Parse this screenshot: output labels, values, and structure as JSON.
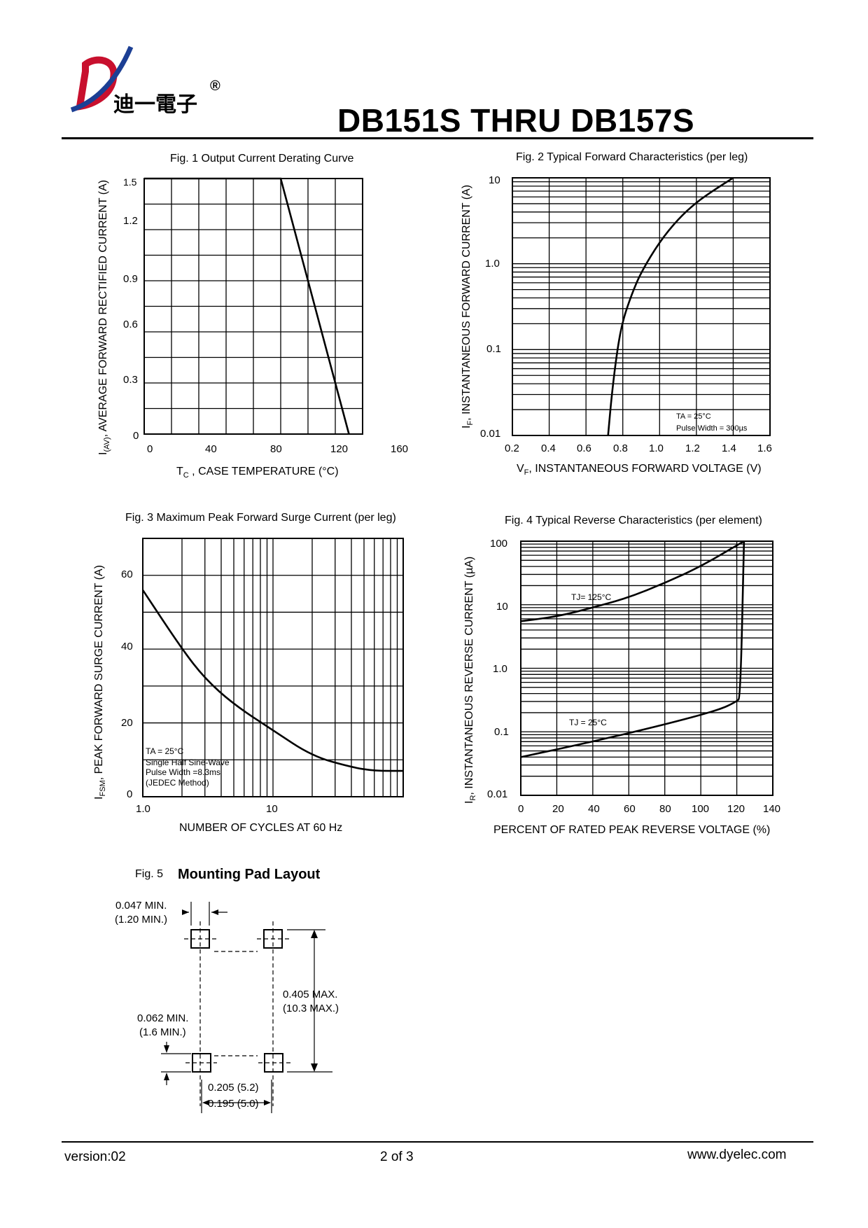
{
  "header": {
    "company_cn": "迪一電子",
    "registered": "®",
    "title": "DB151S THRU DB157S"
  },
  "fig1": {
    "title": "Fig. 1  Output Current Derating Curve",
    "ylabel_main": "I",
    "ylabel_sub": "(AV)",
    "ylabel_rest": ", AVERAGE FORWARD RECTIFIED CURRENT (A)",
    "xlabel_main": "T",
    "xlabel_sub": "C",
    "xlabel_rest": " , CASE TEMPERATURE (°C)",
    "yticks": [
      "1.5",
      "1.2",
      "0.9",
      "0.6",
      "0.3",
      "0"
    ],
    "xticks": [
      "0",
      "40",
      "80",
      "120",
      "160"
    ]
  },
  "fig2": {
    "title": "Fig. 2 Typical Forward Characteristics (per leg)",
    "ylabel_main": "I",
    "ylabel_sub": "F",
    "ylabel_rest": ", INSTANTANEOUS FORWARD CURRENT (A)",
    "xlabel_main": "V",
    "xlabel_sub": "F",
    "xlabel_rest": ", INSTANTANEOUS FORWARD VOLTAGE (V)",
    "yticks": [
      "10",
      "1.0",
      "0.1",
      "0.01"
    ],
    "xticks": [
      "0.2",
      "0.4",
      "0.6",
      "0.8",
      "1.0",
      "1.2",
      "1.4",
      "1.6"
    ],
    "note1": "TA = 25°C",
    "note2": "Pulse Width = 300µs"
  },
  "fig3": {
    "title": "Fig. 3  Maximum Peak Forward Surge Current (per leg)",
    "ylabel_main": "I",
    "ylabel_sub": "FSM",
    "ylabel_rest": ", PEAK FORWARD SURGE CURRENT (A)",
    "xlabel": "NUMBER OF CYCLES AT 60 Hz",
    "yticks": [
      "60",
      "40",
      "20",
      "0"
    ],
    "xticks": [
      "1.0",
      "10"
    ],
    "note1": "TA = 25°C",
    "note2": "Single Half Sine-Wave",
    "note3": "Pulse Width =8.3ms",
    "note4": "(JEDEC Method)"
  },
  "fig4": {
    "title": "Fig. 4  Typical Reverse Characteristics (per element)",
    "ylabel_main": "I",
    "ylabel_sub": "R",
    "ylabel_rest": ", INSTANTANEOUS REVERSE CURRENT (µA)",
    "xlabel": "PERCENT OF RATED PEAK REVERSE VOLTAGE (%)",
    "yticks": [
      "100",
      "10",
      "1.0",
      "0.1",
      "0.01"
    ],
    "xticks": [
      "0",
      "20",
      "40",
      "60",
      "80",
      "100",
      "120",
      "140"
    ],
    "label_hot": "TJ= 125°C",
    "label_cold": "TJ = 25°C"
  },
  "fig5": {
    "fig_no": "Fig. 5",
    "title": "Mounting Pad Layout",
    "dim1_a": "0.047 MIN.",
    "dim1_b": "(1.20 MIN.)",
    "dim2_a": "0.405 MAX.",
    "dim2_b": "(10.3 MAX.)",
    "dim3_a": "0.062 MIN.",
    "dim3_b": "(1.6 MIN.)",
    "dim4_a": "0.205 (5.2)",
    "dim4_b": "0.195 (5.0)"
  },
  "footer": {
    "version": "version:02",
    "page": "2 of 3",
    "website": "www.dyelec.com"
  },
  "chart_data": [
    {
      "type": "line",
      "title": "Fig. 1  Output Current Derating Curve",
      "xlabel": "TC , CASE TEMPERATURE (°C)",
      "ylabel": "I(AV), AVERAGE FORWARD RECTIFIED CURRENT (A)",
      "xlim": [
        0,
        160
      ],
      "ylim": [
        0,
        1.5
      ],
      "x": [
        0,
        100,
        150
      ],
      "y": [
        1.5,
        1.5,
        0
      ],
      "grid": true
    },
    {
      "type": "line",
      "title": "Fig. 2 Typical Forward Characteristics (per leg)",
      "xlabel": "VF, INSTANTANEOUS FORWARD VOLTAGE (V)",
      "ylabel": "IF, INSTANTANEOUS FORWARD CURRENT (A)",
      "xlim": [
        0.2,
        1.6
      ],
      "ylim": [
        0.01,
        10
      ],
      "yscale": "log",
      "x": [
        0.72,
        0.74,
        0.77,
        0.8,
        0.85,
        0.9,
        1.0,
        1.1,
        1.2,
        1.3,
        1.4
      ],
      "y": [
        0.01,
        0.03,
        0.1,
        0.22,
        0.45,
        0.8,
        1.8,
        3.3,
        5.2,
        7.3,
        10
      ],
      "grid": true
    },
    {
      "type": "line",
      "title": "Fig. 3  Maximum Peak Forward Surge Current (per leg)",
      "xlabel": "NUMBER OF CYCLES AT 60 Hz",
      "ylabel": "IFSM, PEAK FORWARD SURGE CURRENT (A)",
      "xlim": [
        1,
        100
      ],
      "ylim": [
        0,
        70
      ],
      "xscale": "log",
      "x": [
        1,
        2,
        3,
        5,
        10,
        20,
        40,
        60,
        100
      ],
      "y": [
        56,
        40,
        32,
        25,
        18,
        11,
        8,
        7,
        7
      ],
      "grid": true
    },
    {
      "type": "line",
      "title": "Fig. 4  Typical Reverse Characteristics (per element)",
      "xlabel": "PERCENT OF RATED PEAK REVERSE VOLTAGE (%)",
      "ylabel": "IR, INSTANTANEOUS REVERSE CURRENT (µA)",
      "xlim": [
        0,
        140
      ],
      "ylim": [
        0.01,
        100
      ],
      "yscale": "log",
      "series": [
        {
          "name": "TJ= 125°C",
          "x": [
            0,
            20,
            40,
            60,
            80,
            100,
            124
          ],
          "y": [
            5.5,
            6.5,
            9,
            13,
            22,
            40,
            100
          ]
        },
        {
          "name": "TJ = 25°C",
          "x": [
            0,
            40,
            80,
            110,
            120,
            122,
            124
          ],
          "y": [
            0.04,
            0.07,
            0.13,
            0.22,
            0.3,
            0.35,
            100
          ]
        }
      ],
      "grid": true
    }
  ]
}
